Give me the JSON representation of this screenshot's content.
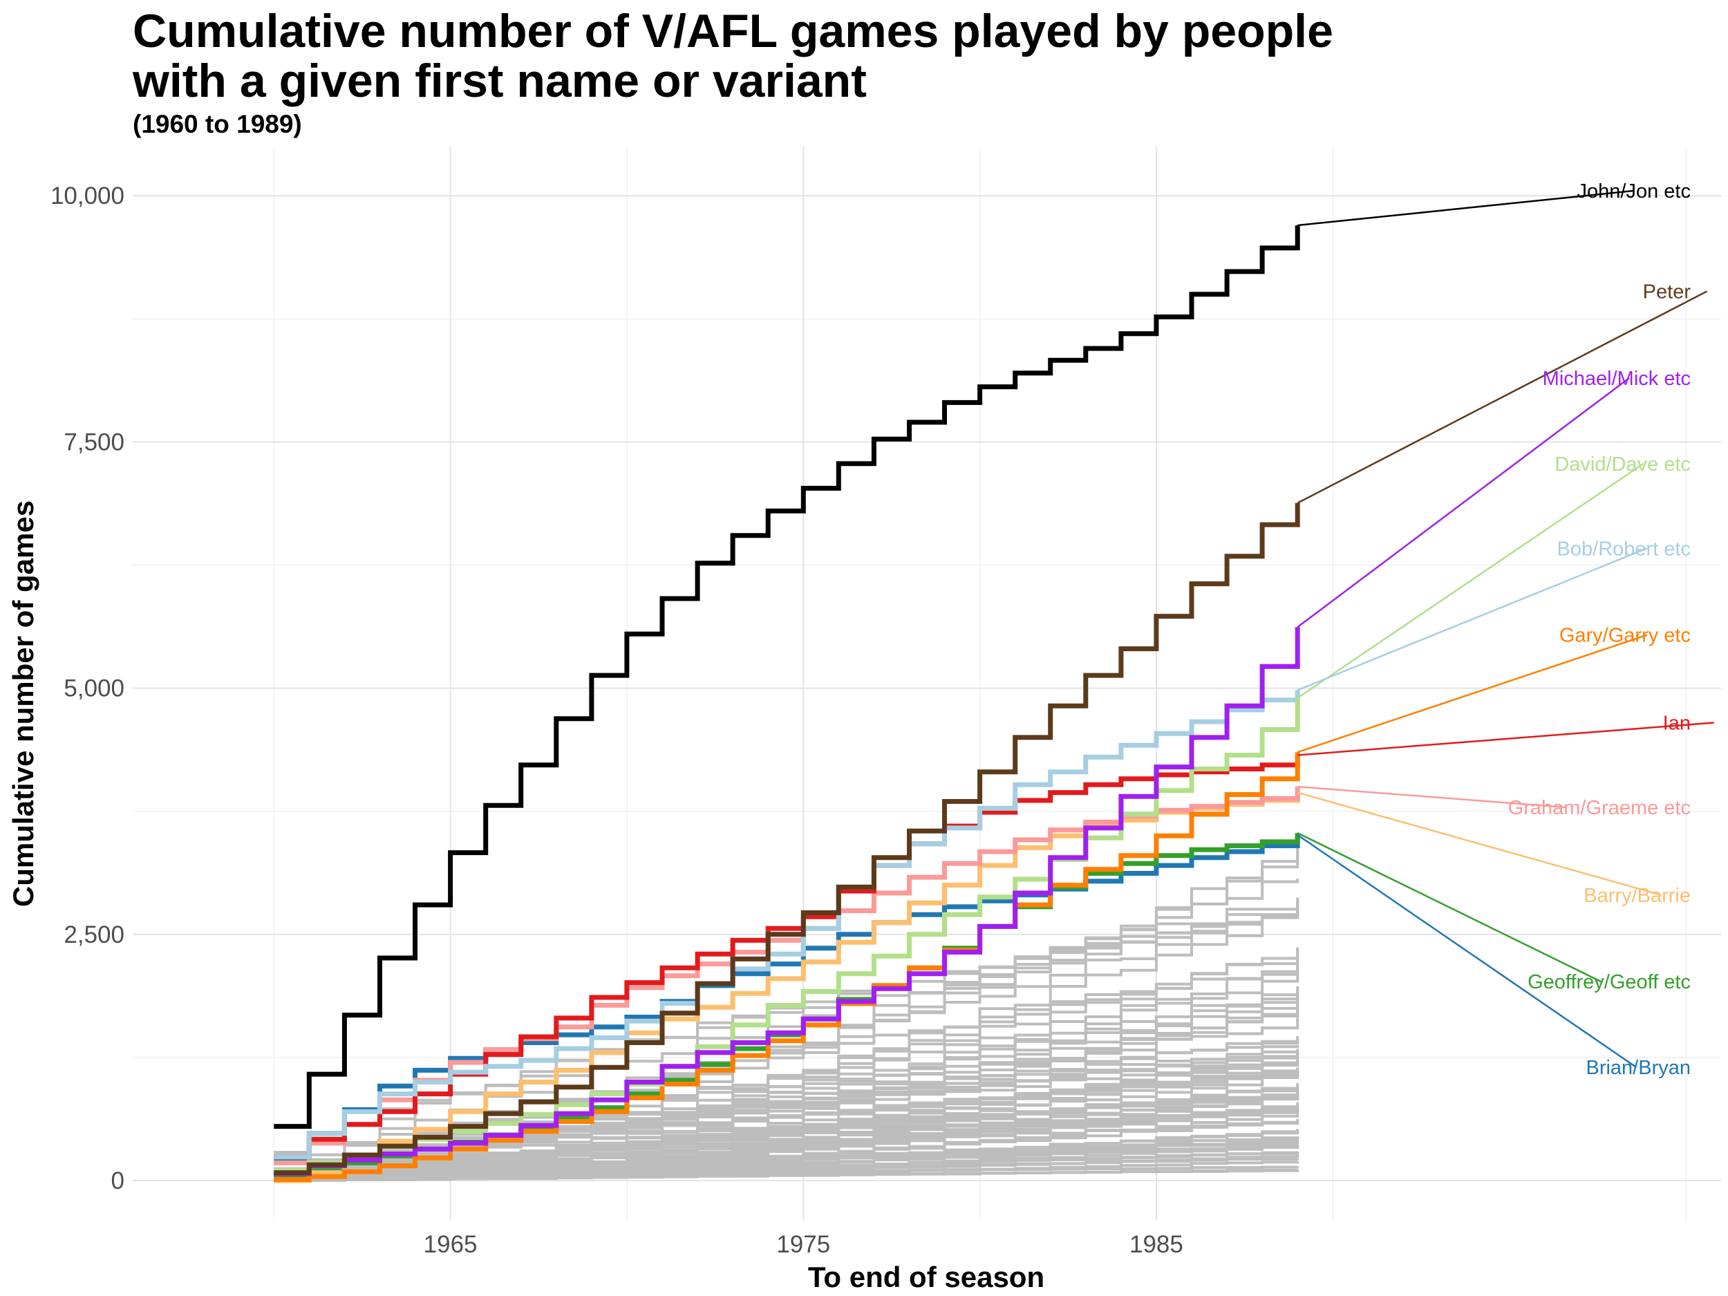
{
  "chart_data": {
    "type": "line",
    "step": true,
    "title_lines": [
      "Cumulative number of V/AFL games played by people",
      "with a given first name or variant"
    ],
    "subtitle": "(1960 to 1989)",
    "xlabel": "To end of season",
    "ylabel": "Cumulative number of games",
    "xlim": [
      1956,
      2001
    ],
    "ylim": [
      -400,
      10500
    ],
    "x_ticks": [
      1965,
      1975,
      1985
    ],
    "x_tick_labels": [
      "1965",
      "1975",
      "1985"
    ],
    "y_ticks": [
      0,
      2500,
      5000,
      7500,
      10000
    ],
    "y_tick_labels": [
      "0",
      "2,500",
      "5,000",
      "7,500",
      "10,000"
    ],
    "grid": true,
    "years": [
      1960,
      1961,
      1962,
      1963,
      1964,
      1965,
      1966,
      1967,
      1968,
      1969,
      1970,
      1971,
      1972,
      1973,
      1974,
      1975,
      1976,
      1977,
      1978,
      1979,
      1980,
      1981,
      1982,
      1983,
      1984,
      1985,
      1986,
      1987,
      1988,
      1989
    ],
    "series": [
      {
        "name": "John/Jon etc",
        "color": "#000000",
        "label_year": 1998.5,
        "label_value": 10050,
        "values": [
          550,
          1080,
          1680,
          2260,
          2800,
          3330,
          3810,
          4220,
          4690,
          5130,
          5550,
          5910,
          6270,
          6550,
          6800,
          7030,
          7280,
          7530,
          7700,
          7900,
          8060,
          8200,
          8330,
          8450,
          8600,
          8770,
          9000,
          9230,
          9470,
          9700
        ]
      },
      {
        "name": "Peter",
        "color": "#5c3a1a",
        "label_year": 2000.6,
        "label_value": 9030,
        "values": [
          80,
          160,
          260,
          350,
          440,
          550,
          680,
          800,
          950,
          1150,
          1400,
          1700,
          2000,
          2250,
          2500,
          2720,
          2980,
          3280,
          3550,
          3850,
          4150,
          4500,
          4820,
          5130,
          5400,
          5730,
          6060,
          6340,
          6660,
          6880
        ]
      },
      {
        "name": "Michael/Mick etc",
        "color": "#a020f0",
        "label_year": 1998.4,
        "label_value": 8150,
        "values": [
          70,
          150,
          210,
          270,
          320,
          380,
          460,
          560,
          680,
          820,
          1000,
          1160,
          1300,
          1400,
          1500,
          1640,
          1820,
          1950,
          2100,
          2320,
          2580,
          2920,
          3280,
          3580,
          3900,
          4200,
          4500,
          4820,
          5220,
          5620
        ]
      },
      {
        "name": "David/Dave etc",
        "color": "#b2df8a",
        "label_year": 1998.8,
        "label_value": 7280,
        "values": [
          100,
          180,
          260,
          340,
          420,
          500,
          580,
          670,
          770,
          880,
          980,
          1160,
          1360,
          1580,
          1780,
          1920,
          2100,
          2280,
          2500,
          2700,
          2880,
          3060,
          3260,
          3480,
          3720,
          3960,
          4180,
          4320,
          4580,
          4900
        ]
      },
      {
        "name": "Bob/Robert etc",
        "color": "#a6cee3",
        "label_year": 1998.9,
        "label_value": 6420,
        "values": [
          240,
          480,
          700,
          880,
          1000,
          1100,
          1160,
          1220,
          1340,
          1450,
          1620,
          1800,
          2000,
          2150,
          2300,
          2560,
          2980,
          3200,
          3420,
          3580,
          3780,
          4020,
          4150,
          4300,
          4420,
          4540,
          4660,
          4780,
          4880,
          4980
        ]
      },
      {
        "name": "Gary/Garry etc",
        "color": "#ff7f00",
        "label_year": 1998.9,
        "label_value": 5540,
        "values": [
          10,
          40,
          90,
          150,
          230,
          320,
          410,
          500,
          600,
          700,
          840,
          980,
          1120,
          1270,
          1420,
          1580,
          1800,
          1980,
          2160,
          2340,
          2580,
          2800,
          3000,
          3160,
          3300,
          3500,
          3720,
          3920,
          4080,
          4350
        ]
      },
      {
        "name": "Ian",
        "color": "#e31a1c",
        "label_year": 2000.8,
        "label_value": 4650,
        "values": [
          240,
          420,
          570,
          700,
          880,
          1080,
          1280,
          1460,
          1650,
          1860,
          2010,
          2160,
          2300,
          2440,
          2560,
          2680,
          2940,
          3200,
          3420,
          3600,
          3740,
          3860,
          3940,
          4020,
          4080,
          4120,
          4150,
          4180,
          4220,
          4320
        ]
      },
      {
        "name": "Graham/Graeme etc",
        "color": "#fb9a99",
        "label_year": 1996.6,
        "label_value": 3790,
        "values": [
          180,
          380,
          570,
          820,
          1020,
          1200,
          1330,
          1440,
          1560,
          1780,
          1960,
          2080,
          2200,
          2320,
          2440,
          2560,
          2740,
          2920,
          3080,
          3220,
          3340,
          3460,
          3560,
          3640,
          3700,
          3760,
          3800,
          3840,
          3880,
          4000
        ]
      },
      {
        "name": "Barry/Barrie",
        "color": "#fdbf6f",
        "label_year": 1999.3,
        "label_value": 2900,
        "values": [
          0,
          80,
          240,
          400,
          520,
          700,
          880,
          1000,
          1120,
          1300,
          1500,
          1640,
          1760,
          1900,
          2050,
          2220,
          2420,
          2620,
          2820,
          3000,
          3200,
          3380,
          3500,
          3600,
          3660,
          3740,
          3780,
          3820,
          3860,
          3940
        ]
      },
      {
        "name": "Geoffrey/Geoff etc",
        "color": "#33a02c",
        "label_year": 1997.6,
        "label_value": 2020,
        "values": [
          40,
          100,
          180,
          250,
          320,
          390,
          460,
          540,
          640,
          740,
          880,
          1020,
          1180,
          1340,
          1480,
          1640,
          1840,
          1980,
          2160,
          2360,
          2580,
          2780,
          2980,
          3120,
          3220,
          3300,
          3360,
          3400,
          3440,
          3530
        ]
      },
      {
        "name": "Brian/Bryan",
        "color": "#1f78b4",
        "label_year": 1998.6,
        "label_value": 1150,
        "values": [
          220,
          480,
          720,
          960,
          1120,
          1240,
          1320,
          1400,
          1480,
          1560,
          1660,
          1820,
          1980,
          2100,
          2200,
          2360,
          2500,
          2620,
          2700,
          2780,
          2840,
          2900,
          2960,
          3040,
          3120,
          3200,
          3280,
          3340,
          3400,
          3510
        ]
      }
    ]
  }
}
